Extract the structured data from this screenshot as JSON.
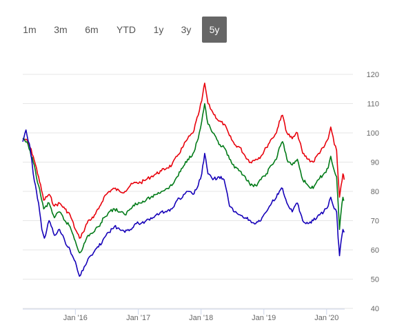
{
  "range_selector": {
    "buttons": [
      {
        "label": "1m",
        "active": false
      },
      {
        "label": "3m",
        "active": false
      },
      {
        "label": "6m",
        "active": false
      },
      {
        "label": "YTD",
        "active": false
      },
      {
        "label": "1y",
        "active": false
      },
      {
        "label": "3y",
        "active": false
      },
      {
        "label": "5y",
        "active": true
      }
    ],
    "active_color": "#666666"
  },
  "chart_data": {
    "type": "line",
    "title": "",
    "xlabel": "",
    "ylabel": "",
    "ylim": [
      40,
      120
    ],
    "yticks": [
      40,
      50,
      60,
      70,
      80,
      90,
      100,
      110,
      120
    ],
    "xlim": [
      "2015-03-01",
      "2020-04-15"
    ],
    "xticks": [
      {
        "label": "Jan '16",
        "date": "2016-01-01"
      },
      {
        "label": "Jan '17",
        "date": "2017-01-01"
      },
      {
        "label": "Jan '18",
        "date": "2018-01-01"
      },
      {
        "label": "Jan '19",
        "date": "2019-01-01"
      },
      {
        "label": "Jan '20",
        "date": "2020-01-01"
      }
    ],
    "grid": {
      "horizontal": true,
      "vertical": false
    },
    "legend": "none",
    "series": [
      {
        "color": "#e8000b",
        "points": [
          [
            "2015-03-01",
            98
          ],
          [
            "2015-04-01",
            97
          ],
          [
            "2015-05-01",
            92
          ],
          [
            "2015-06-01",
            85
          ],
          [
            "2015-07-01",
            77
          ],
          [
            "2015-08-01",
            79
          ],
          [
            "2015-09-01",
            75
          ],
          [
            "2015-10-01",
            76
          ],
          [
            "2015-11-01",
            74
          ],
          [
            "2015-12-01",
            72
          ],
          [
            "2016-01-01",
            67
          ],
          [
            "2016-01-25",
            64
          ],
          [
            "2016-02-15",
            66
          ],
          [
            "2016-03-15",
            70
          ],
          [
            "2016-04-15",
            71
          ],
          [
            "2016-05-15",
            74
          ],
          [
            "2016-06-15",
            78
          ],
          [
            "2016-07-15",
            80
          ],
          [
            "2016-08-15",
            81
          ],
          [
            "2016-09-15",
            80
          ],
          [
            "2016-10-15",
            80
          ],
          [
            "2016-11-15",
            82
          ],
          [
            "2016-12-15",
            83
          ],
          [
            "2017-01-15",
            83
          ],
          [
            "2017-02-15",
            84
          ],
          [
            "2017-03-15",
            85
          ],
          [
            "2017-04-15",
            86
          ],
          [
            "2017-05-15",
            87
          ],
          [
            "2017-06-15",
            88
          ],
          [
            "2017-07-15",
            89
          ],
          [
            "2017-08-15",
            92
          ],
          [
            "2017-09-15",
            95
          ],
          [
            "2017-10-15",
            98
          ],
          [
            "2017-11-15",
            100
          ],
          [
            "2017-12-15",
            106
          ],
          [
            "2018-01-05",
            111
          ],
          [
            "2018-01-22",
            117
          ],
          [
            "2018-02-10",
            110
          ],
          [
            "2018-03-10",
            107
          ],
          [
            "2018-04-15",
            104
          ],
          [
            "2018-05-15",
            103
          ],
          [
            "2018-06-15",
            99
          ],
          [
            "2018-07-15",
            96
          ],
          [
            "2018-08-15",
            95
          ],
          [
            "2018-09-15",
            92
          ],
          [
            "2018-10-15",
            90
          ],
          [
            "2018-11-15",
            91
          ],
          [
            "2018-12-15",
            92
          ],
          [
            "2019-01-15",
            95
          ],
          [
            "2019-02-15",
            98
          ],
          [
            "2019-03-15",
            100
          ],
          [
            "2019-04-01",
            104
          ],
          [
            "2019-04-20",
            106
          ],
          [
            "2019-05-15",
            100
          ],
          [
            "2019-06-15",
            98
          ],
          [
            "2019-07-15",
            100
          ],
          [
            "2019-08-15",
            93
          ],
          [
            "2019-09-15",
            91
          ],
          [
            "2019-10-15",
            90
          ],
          [
            "2019-11-15",
            93
          ],
          [
            "2019-12-15",
            95
          ],
          [
            "2020-01-10",
            98
          ],
          [
            "2020-01-25",
            102
          ],
          [
            "2020-02-15",
            96
          ],
          [
            "2020-02-28",
            94
          ],
          [
            "2020-03-08",
            85
          ],
          [
            "2020-03-16",
            78
          ],
          [
            "2020-03-25",
            82
          ],
          [
            "2020-04-05",
            86
          ],
          [
            "2020-04-12",
            84
          ]
        ]
      },
      {
        "color": "#007a17",
        "points": [
          [
            "2015-03-01",
            98
          ],
          [
            "2015-04-01",
            96
          ],
          [
            "2015-05-01",
            90
          ],
          [
            "2015-06-01",
            82
          ],
          [
            "2015-07-01",
            74
          ],
          [
            "2015-08-01",
            76
          ],
          [
            "2015-09-01",
            71
          ],
          [
            "2015-10-01",
            73
          ],
          [
            "2015-11-01",
            70
          ],
          [
            "2015-12-01",
            68
          ],
          [
            "2016-01-01",
            63
          ],
          [
            "2016-01-25",
            59
          ],
          [
            "2016-02-15",
            61
          ],
          [
            "2016-03-15",
            65
          ],
          [
            "2016-04-15",
            66
          ],
          [
            "2016-05-15",
            68
          ],
          [
            "2016-06-15",
            71
          ],
          [
            "2016-07-15",
            73
          ],
          [
            "2016-08-15",
            74
          ],
          [
            "2016-09-15",
            73
          ],
          [
            "2016-10-15",
            72
          ],
          [
            "2016-11-15",
            74
          ],
          [
            "2016-12-15",
            76
          ],
          [
            "2017-01-15",
            76
          ],
          [
            "2017-02-15",
            77
          ],
          [
            "2017-03-15",
            78
          ],
          [
            "2017-04-15",
            79
          ],
          [
            "2017-05-15",
            80
          ],
          [
            "2017-06-15",
            81
          ],
          [
            "2017-07-15",
            82
          ],
          [
            "2017-08-15",
            85
          ],
          [
            "2017-09-15",
            88
          ],
          [
            "2017-10-15",
            91
          ],
          [
            "2017-11-15",
            93
          ],
          [
            "2017-12-15",
            98
          ],
          [
            "2018-01-05",
            104
          ],
          [
            "2018-01-22",
            110
          ],
          [
            "2018-02-10",
            103
          ],
          [
            "2018-03-10",
            100
          ],
          [
            "2018-04-15",
            96
          ],
          [
            "2018-05-15",
            95
          ],
          [
            "2018-06-15",
            91
          ],
          [
            "2018-07-15",
            88
          ],
          [
            "2018-08-15",
            87
          ],
          [
            "2018-09-15",
            85
          ],
          [
            "2018-10-15",
            82
          ],
          [
            "2018-11-15",
            82
          ],
          [
            "2018-12-15",
            84
          ],
          [
            "2019-01-15",
            86
          ],
          [
            "2019-02-15",
            89
          ],
          [
            "2019-03-15",
            91
          ],
          [
            "2019-04-01",
            95
          ],
          [
            "2019-04-20",
            97
          ],
          [
            "2019-05-15",
            91
          ],
          [
            "2019-06-15",
            89
          ],
          [
            "2019-07-15",
            91
          ],
          [
            "2019-08-15",
            84
          ],
          [
            "2019-09-15",
            82
          ],
          [
            "2019-10-15",
            81
          ],
          [
            "2019-11-15",
            84
          ],
          [
            "2019-12-15",
            86
          ],
          [
            "2020-01-10",
            88
          ],
          [
            "2020-01-25",
            92
          ],
          [
            "2020-02-15",
            87
          ],
          [
            "2020-02-28",
            85
          ],
          [
            "2020-03-08",
            76
          ],
          [
            "2020-03-16",
            67
          ],
          [
            "2020-03-25",
            73
          ],
          [
            "2020-04-05",
            78
          ],
          [
            "2020-04-12",
            77
          ]
        ]
      },
      {
        "color": "#1500b8",
        "points": [
          [
            "2015-03-01",
            97
          ],
          [
            "2015-03-20",
            101
          ],
          [
            "2015-04-15",
            94
          ],
          [
            "2015-05-01",
            86
          ],
          [
            "2015-06-01",
            76
          ],
          [
            "2015-06-20",
            67
          ],
          [
            "2015-07-05",
            64
          ],
          [
            "2015-08-01",
            70
          ],
          [
            "2015-09-01",
            65
          ],
          [
            "2015-10-01",
            67
          ],
          [
            "2015-11-01",
            63
          ],
          [
            "2015-12-01",
            60
          ],
          [
            "2016-01-01",
            56
          ],
          [
            "2016-01-25",
            51
          ],
          [
            "2016-02-15",
            53
          ],
          [
            "2016-03-15",
            57
          ],
          [
            "2016-04-15",
            59
          ],
          [
            "2016-05-15",
            61
          ],
          [
            "2016-06-15",
            64
          ],
          [
            "2016-07-15",
            66
          ],
          [
            "2016-08-15",
            68
          ],
          [
            "2016-09-15",
            67
          ],
          [
            "2016-10-15",
            66
          ],
          [
            "2016-11-15",
            67
          ],
          [
            "2016-12-15",
            69
          ],
          [
            "2017-01-15",
            69
          ],
          [
            "2017-02-15",
            70
          ],
          [
            "2017-03-15",
            71
          ],
          [
            "2017-04-15",
            72
          ],
          [
            "2017-05-15",
            73
          ],
          [
            "2017-06-15",
            73
          ],
          [
            "2017-07-15",
            74
          ],
          [
            "2017-08-15",
            77
          ],
          [
            "2017-09-15",
            78
          ],
          [
            "2017-10-15",
            80
          ],
          [
            "2017-11-15",
            79
          ],
          [
            "2017-12-15",
            82
          ],
          [
            "2018-01-05",
            86
          ],
          [
            "2018-01-22",
            93
          ],
          [
            "2018-02-10",
            86
          ],
          [
            "2018-03-10",
            84
          ],
          [
            "2018-04-15",
            85
          ],
          [
            "2018-05-15",
            84
          ],
          [
            "2018-06-15",
            75
          ],
          [
            "2018-07-15",
            73
          ],
          [
            "2018-08-15",
            72
          ],
          [
            "2018-09-15",
            71
          ],
          [
            "2018-10-15",
            70
          ],
          [
            "2018-11-15",
            69
          ],
          [
            "2018-12-15",
            70
          ],
          [
            "2019-01-15",
            73
          ],
          [
            "2019-02-15",
            76
          ],
          [
            "2019-03-15",
            78
          ],
          [
            "2019-04-01",
            80
          ],
          [
            "2019-04-20",
            81
          ],
          [
            "2019-05-15",
            76
          ],
          [
            "2019-06-15",
            73
          ],
          [
            "2019-07-15",
            76
          ],
          [
            "2019-08-15",
            70
          ],
          [
            "2019-09-15",
            69
          ],
          [
            "2019-10-15",
            70
          ],
          [
            "2019-11-15",
            72
          ],
          [
            "2019-12-15",
            73
          ],
          [
            "2020-01-10",
            75
          ],
          [
            "2020-01-25",
            78
          ],
          [
            "2020-02-15",
            74
          ],
          [
            "2020-02-28",
            73
          ],
          [
            "2020-03-08",
            64
          ],
          [
            "2020-03-16",
            58
          ],
          [
            "2020-03-25",
            63
          ],
          [
            "2020-04-05",
            67
          ],
          [
            "2020-04-12",
            66
          ]
        ]
      }
    ]
  }
}
